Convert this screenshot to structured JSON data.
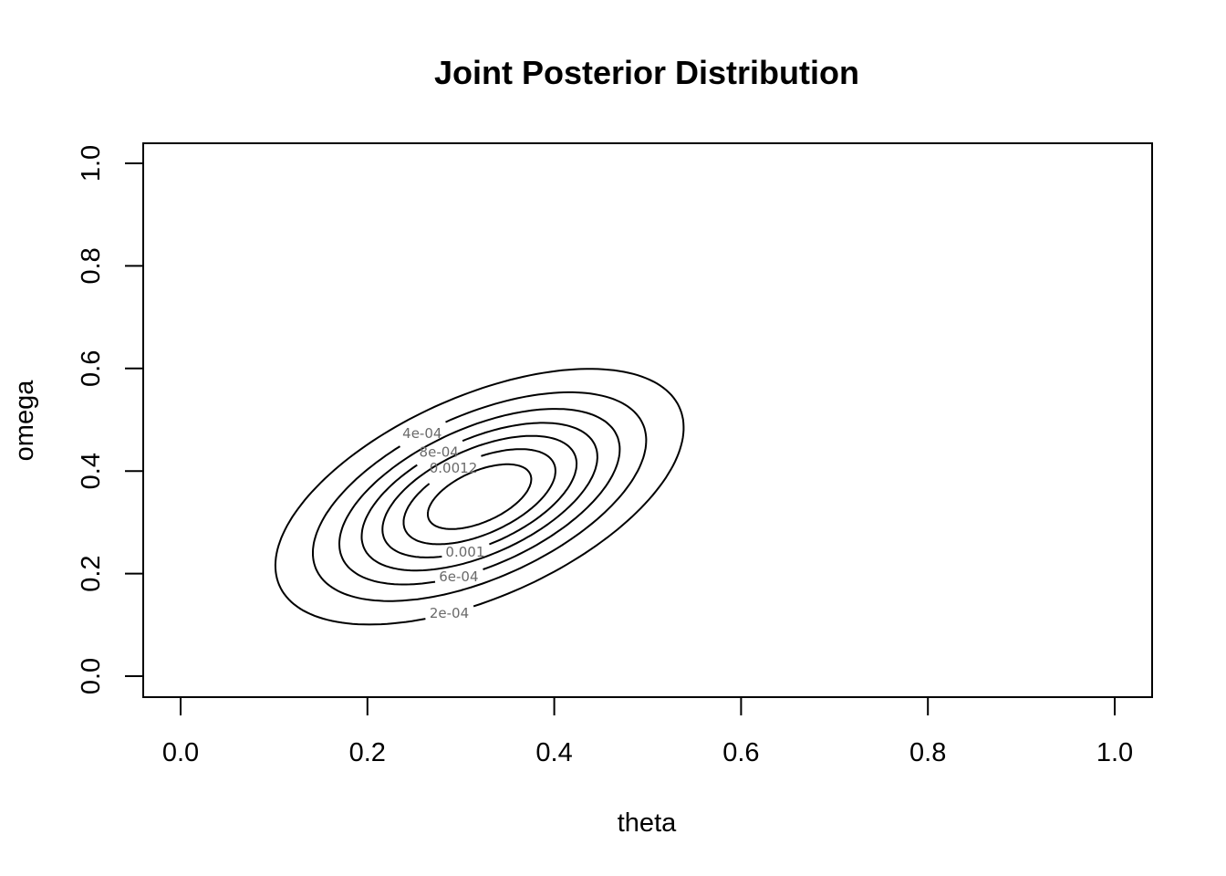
{
  "chart_data": {
    "type": "contour",
    "title": "Joint Posterior Distribution",
    "xlabel": "theta",
    "ylabel": "omega",
    "xlim": [
      0.0,
      1.0
    ],
    "ylim": [
      0.0,
      1.0
    ],
    "x_ticks": [
      "0.0",
      "0.2",
      "0.4",
      "0.6",
      "0.8",
      "1.0"
    ],
    "y_ticks": [
      "0.0",
      "0.2",
      "0.4",
      "0.6",
      "0.8",
      "1.0"
    ],
    "grid": false,
    "legend": "none",
    "line_color": "#000000",
    "label_color": "#6a6a6a",
    "peak": {
      "theta": 0.32,
      "omega": 0.35
    },
    "contours": [
      {
        "level": 0.0002,
        "label": "2e-04"
      },
      {
        "level": 0.0004,
        "label": "4e-04"
      },
      {
        "level": 0.0006,
        "label": "6e-04"
      },
      {
        "level": 0.0008,
        "label": "8e-04"
      },
      {
        "level": 0.001,
        "label": "0.001"
      },
      {
        "level": 0.0012,
        "label": "0.0012"
      },
      {
        "level": 0.0014,
        "label": ""
      }
    ]
  }
}
